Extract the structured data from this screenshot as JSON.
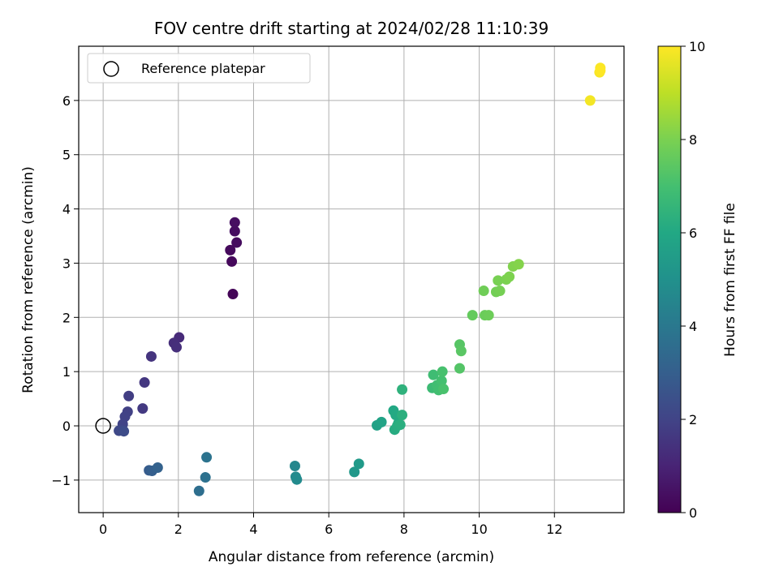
{
  "chart_data": {
    "type": "scatter",
    "title": "FOV centre drift starting at 2024/02/28 11:10:39",
    "xlabel": "Angular distance from reference (arcmin)",
    "ylabel": "Rotation from reference (arcmin)",
    "xlim": [
      -0.65,
      13.85
    ],
    "ylim": [
      -1.6,
      7.0
    ],
    "xticks": [
      0,
      2,
      4,
      6,
      8,
      10,
      12
    ],
    "yticks": [
      -1,
      0,
      1,
      2,
      3,
      4,
      5,
      6
    ],
    "xtick_labels": [
      "0",
      "2",
      "4",
      "6",
      "8",
      "10",
      "12"
    ],
    "ytick_labels": [
      "−1",
      "0",
      "1",
      "2",
      "3",
      "4",
      "5",
      "6"
    ],
    "grid": true,
    "legend": {
      "position": "top-left",
      "entries": [
        "Reference platepar"
      ]
    },
    "reference_point": {
      "x": 0,
      "y": 0
    },
    "colorbar": {
      "label": "Hours from first FF file",
      "range": [
        0,
        10
      ],
      "ticks": [
        0,
        2,
        4,
        6,
        8,
        10
      ],
      "tick_labels": [
        "0",
        "2",
        "4",
        "6",
        "8",
        "10"
      ],
      "colormap": "viridis"
    },
    "points": [
      {
        "x": 3.45,
        "y": 2.43,
        "t": 0.1
      },
      {
        "x": 3.42,
        "y": 3.03,
        "t": 0.2
      },
      {
        "x": 3.38,
        "y": 3.24,
        "t": 0.25
      },
      {
        "x": 3.55,
        "y": 3.38,
        "t": 0.3
      },
      {
        "x": 3.5,
        "y": 3.59,
        "t": 0.35
      },
      {
        "x": 3.5,
        "y": 3.75,
        "t": 0.4
      },
      {
        "x": 2.02,
        "y": 1.63,
        "t": 1.2
      },
      {
        "x": 1.88,
        "y": 1.53,
        "t": 1.3
      },
      {
        "x": 1.95,
        "y": 1.45,
        "t": 1.35
      },
      {
        "x": 1.28,
        "y": 1.28,
        "t": 1.5
      },
      {
        "x": 1.1,
        "y": 0.8,
        "t": 1.6
      },
      {
        "x": 1.05,
        "y": 0.32,
        "t": 1.65
      },
      {
        "x": 0.68,
        "y": 0.55,
        "t": 1.8
      },
      {
        "x": 0.65,
        "y": 0.26,
        "t": 1.9
      },
      {
        "x": 0.58,
        "y": 0.17,
        "t": 1.95
      },
      {
        "x": 0.52,
        "y": 0.03,
        "t": 2.0
      },
      {
        "x": 0.48,
        "y": -0.08,
        "t": 2.1
      },
      {
        "x": 0.42,
        "y": -0.09,
        "t": 2.2
      },
      {
        "x": 0.55,
        "y": -0.1,
        "t": 2.3
      },
      {
        "x": 1.22,
        "y": -0.82,
        "t": 2.9
      },
      {
        "x": 1.3,
        "y": -0.83,
        "t": 3.0
      },
      {
        "x": 1.45,
        "y": -0.77,
        "t": 3.1
      },
      {
        "x": 2.55,
        "y": -1.2,
        "t": 3.6
      },
      {
        "x": 2.72,
        "y": -0.95,
        "t": 3.7
      },
      {
        "x": 2.75,
        "y": -0.58,
        "t": 3.8
      },
      {
        "x": 5.1,
        "y": -0.74,
        "t": 4.6
      },
      {
        "x": 5.12,
        "y": -0.94,
        "t": 4.7
      },
      {
        "x": 5.15,
        "y": -0.99,
        "t": 4.75
      },
      {
        "x": 6.68,
        "y": -0.85,
        "t": 5.3
      },
      {
        "x": 6.8,
        "y": -0.7,
        "t": 5.4
      },
      {
        "x": 7.28,
        "y": 0.01,
        "t": 5.7
      },
      {
        "x": 7.4,
        "y": 0.07,
        "t": 5.8
      },
      {
        "x": 7.72,
        "y": 0.28,
        "t": 6.0
      },
      {
        "x": 7.78,
        "y": 0.2,
        "t": 6.05
      },
      {
        "x": 7.85,
        "y": 0.05,
        "t": 6.1
      },
      {
        "x": 7.75,
        "y": -0.07,
        "t": 6.15
      },
      {
        "x": 7.82,
        "y": 0.0,
        "t": 6.2
      },
      {
        "x": 7.9,
        "y": 0.02,
        "t": 6.25
      },
      {
        "x": 7.95,
        "y": 0.2,
        "t": 6.3
      },
      {
        "x": 7.95,
        "y": 0.67,
        "t": 6.4
      },
      {
        "x": 8.75,
        "y": 0.7,
        "t": 6.8
      },
      {
        "x": 8.78,
        "y": 0.94,
        "t": 6.85
      },
      {
        "x": 8.88,
        "y": 0.75,
        "t": 6.9
      },
      {
        "x": 8.92,
        "y": 0.66,
        "t": 6.95
      },
      {
        "x": 9.0,
        "y": 0.83,
        "t": 7.0
      },
      {
        "x": 9.02,
        "y": 1.0,
        "t": 7.05
      },
      {
        "x": 9.05,
        "y": 0.68,
        "t": 7.1
      },
      {
        "x": 9.48,
        "y": 1.06,
        "t": 7.3
      },
      {
        "x": 9.48,
        "y": 1.5,
        "t": 7.35
      },
      {
        "x": 9.52,
        "y": 1.38,
        "t": 7.4
      },
      {
        "x": 9.82,
        "y": 2.04,
        "t": 7.6
      },
      {
        "x": 10.15,
        "y": 2.04,
        "t": 7.7
      },
      {
        "x": 10.25,
        "y": 2.04,
        "t": 7.75
      },
      {
        "x": 10.12,
        "y": 2.49,
        "t": 7.8
      },
      {
        "x": 10.45,
        "y": 2.47,
        "t": 7.85
      },
      {
        "x": 10.55,
        "y": 2.49,
        "t": 7.9
      },
      {
        "x": 10.5,
        "y": 2.68,
        "t": 7.95
      },
      {
        "x": 10.72,
        "y": 2.7,
        "t": 8.0
      },
      {
        "x": 10.8,
        "y": 2.75,
        "t": 8.05
      },
      {
        "x": 10.9,
        "y": 2.94,
        "t": 8.1
      },
      {
        "x": 11.05,
        "y": 2.98,
        "t": 8.15
      },
      {
        "x": 12.95,
        "y": 6.0,
        "t": 9.85
      },
      {
        "x": 13.2,
        "y": 6.52,
        "t": 9.9
      },
      {
        "x": 13.22,
        "y": 6.6,
        "t": 9.95
      },
      {
        "x": 13.22,
        "y": 6.55,
        "t": 10.0
      }
    ]
  }
}
